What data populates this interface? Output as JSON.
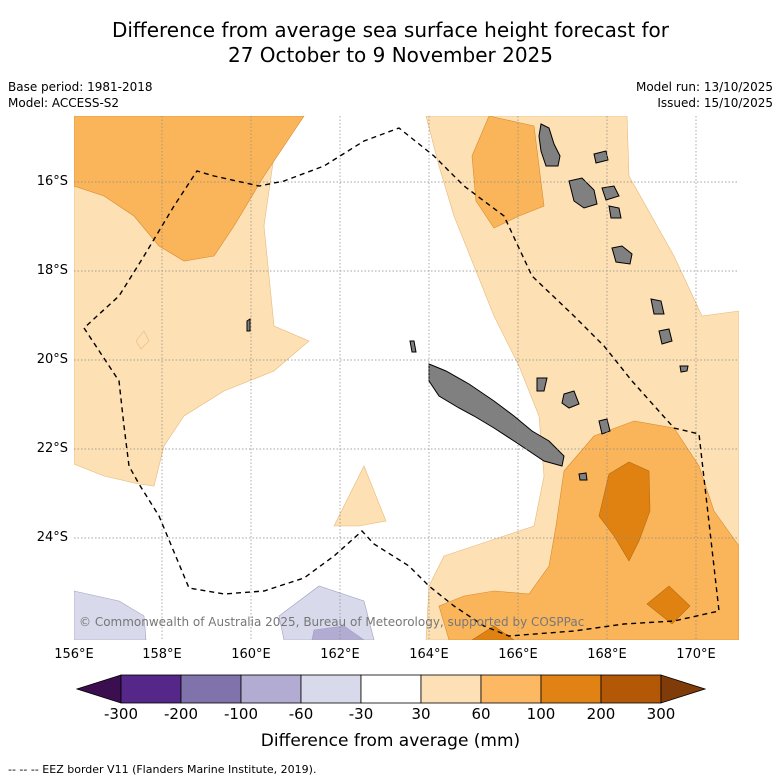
{
  "title": {
    "line1": "Difference from average sea surface height forecast for",
    "line2": "27 October to 9 November 2025"
  },
  "meta": {
    "base_period": "Base period: 1981-2018",
    "model": "Model: ACCESS-S2",
    "model_run": "Model run: 13/10/2025",
    "issued": "Issued: 15/10/2025"
  },
  "map": {
    "lat_labels": [
      "16°S",
      "18°S",
      "20°S",
      "22°S",
      "24°S"
    ],
    "lon_labels": [
      "156°E",
      "158°E",
      "160°E",
      "162°E",
      "164°E",
      "166°E",
      "168°E",
      "170°E"
    ],
    "credit": "© Commonwealth of Australia 2025, Bureau of Meteorology, supported by COSPPac",
    "colors": {
      "land": "#808080",
      "band_30_60": "#fde0b3",
      "band_60_100": "#fab55b",
      "band_100_200": "#e08212",
      "band_neg30_neg60": "#d8daeb",
      "band_neg60_neg100": "#b2abd2"
    }
  },
  "colorbar": {
    "ticks": [
      "-300",
      "-200",
      "-100",
      "-60",
      "-30",
      "30",
      "60",
      "100",
      "200",
      "300"
    ],
    "colors": [
      "#3b0f4f",
      "#542788",
      "#8073ac",
      "#b2abd2",
      "#d8daeb",
      "#ffffff",
      "#fee0b6",
      "#fdb863",
      "#e08214",
      "#b35806",
      "#7f3b08"
    ],
    "label": "Difference from average (mm)"
  },
  "footer": "--  --  -- EEZ border V11 (Flanders Marine Institute, 2019)."
}
